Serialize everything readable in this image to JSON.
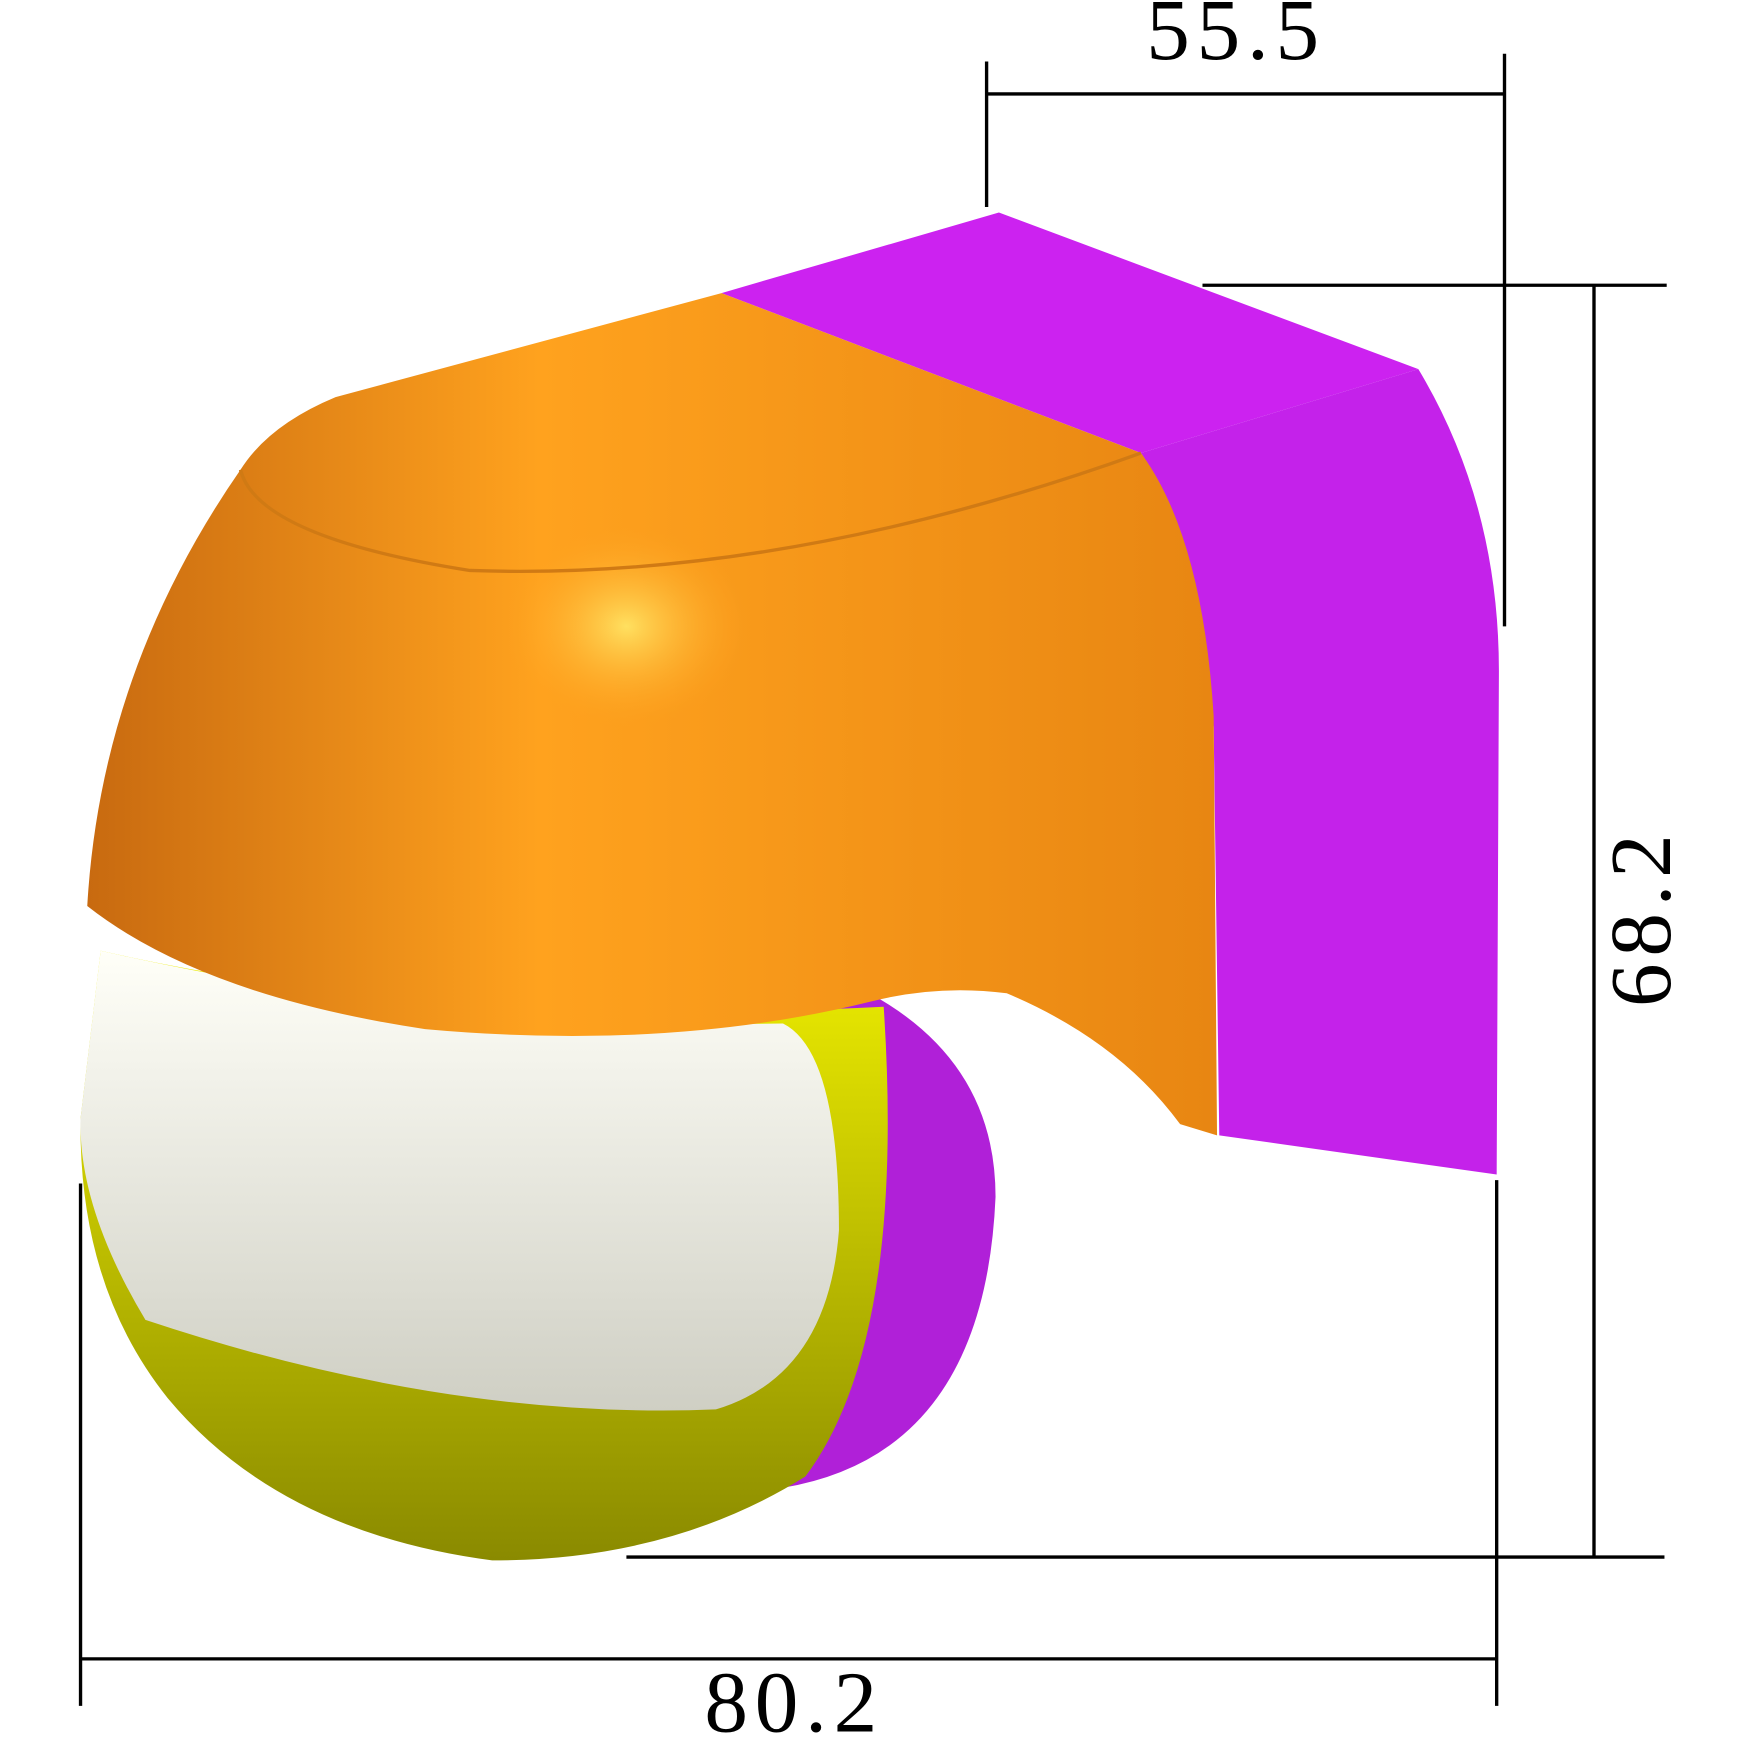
{
  "dimensions": [
    "55.5",
    "68.2",
    "80.2"
  ]
}
